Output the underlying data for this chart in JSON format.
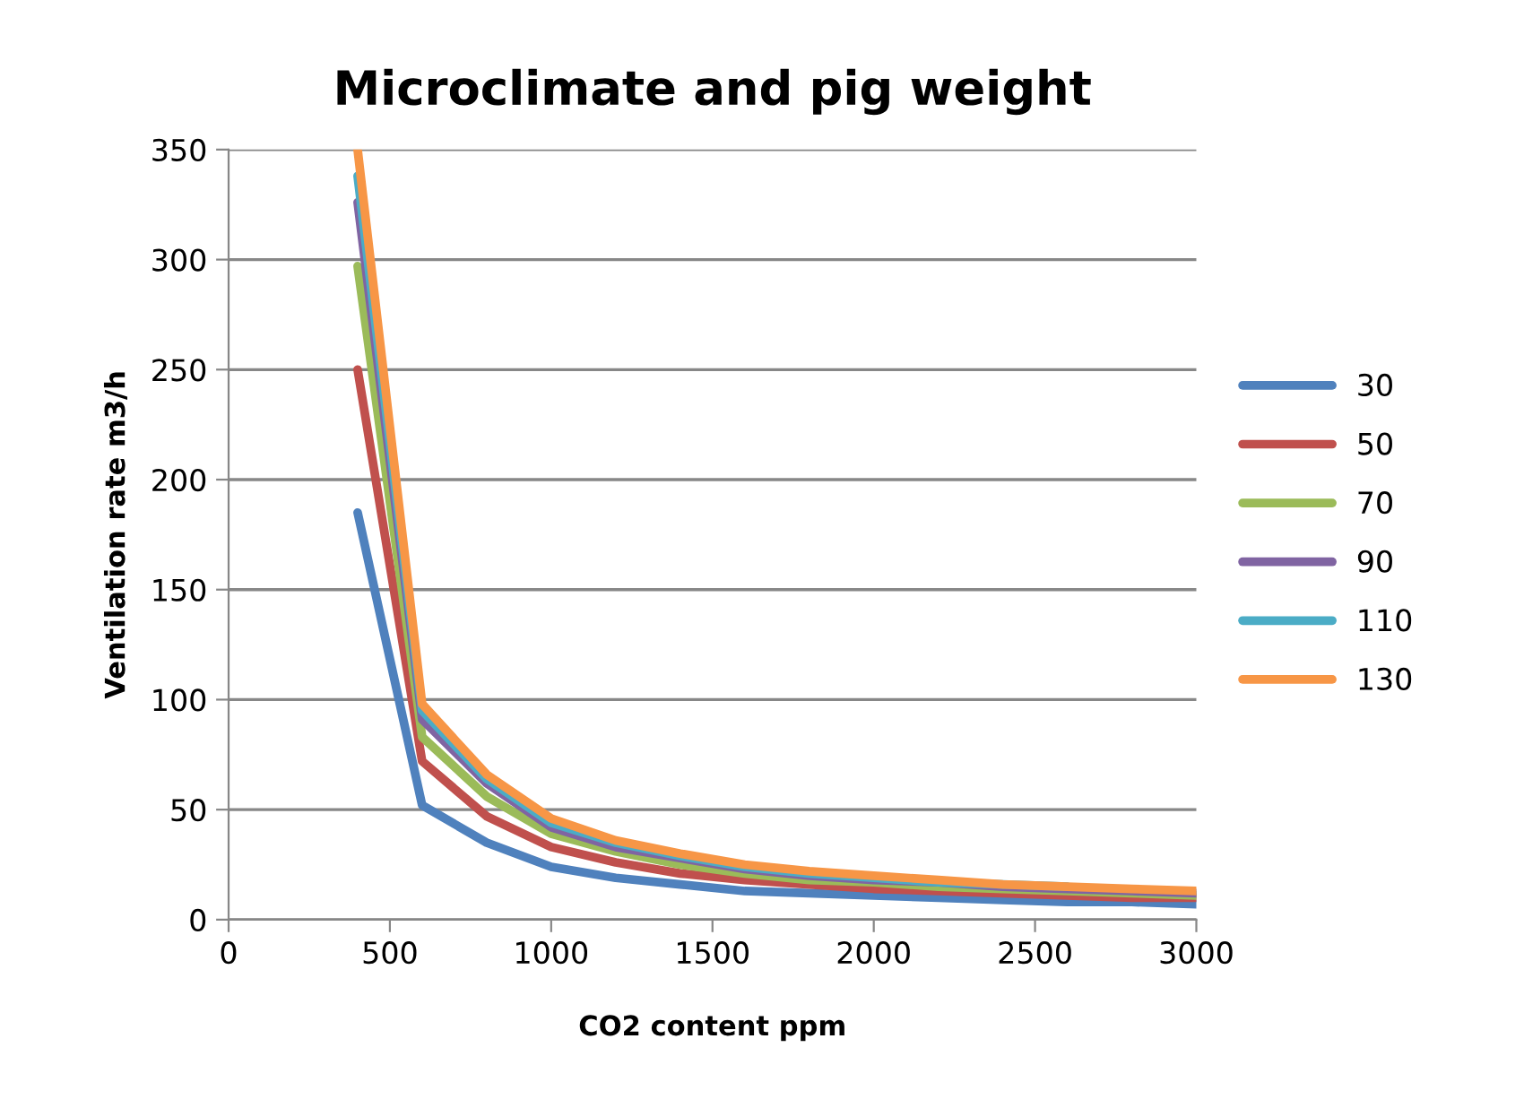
{
  "chart_data": {
    "type": "line",
    "title": "Microclimate and pig weight",
    "xlabel": "CO2 content ppm",
    "ylabel": "Ventilation rate m3/h",
    "x": [
      400,
      600,
      800,
      1000,
      1200,
      1400,
      1600,
      1800,
      2000,
      2200,
      2400,
      2600,
      2800,
      3000
    ],
    "series": [
      {
        "name": "30",
        "color": "#4f81bd",
        "values": [
          185,
          52,
          35,
          24,
          19,
          16,
          13,
          12,
          11,
          10,
          9,
          8,
          8,
          7
        ]
      },
      {
        "name": "50",
        "color": "#c0504d",
        "values": [
          250,
          72,
          47,
          33,
          26,
          21,
          18,
          16,
          14,
          13,
          12,
          11,
          10,
          10
        ]
      },
      {
        "name": "70",
        "color": "#9bbb59",
        "values": [
          297,
          83,
          56,
          39,
          31,
          25,
          21,
          18,
          17,
          15,
          14,
          13,
          12,
          11
        ]
      },
      {
        "name": "90",
        "color": "#8064a2",
        "values": [
          326,
          91,
          62,
          42,
          33,
          28,
          23,
          20,
          18,
          17,
          15,
          14,
          13,
          12
        ]
      },
      {
        "name": "110",
        "color": "#4bacc6",
        "values": [
          338,
          95,
          64,
          44,
          35,
          29,
          24,
          21,
          19,
          17,
          16,
          15,
          null,
          null
        ]
      },
      {
        "name": "130",
        "color": "#f79646",
        "values": [
          350,
          98,
          66,
          46,
          36,
          30,
          25,
          22,
          20,
          18,
          16,
          15,
          14,
          13
        ]
      }
    ],
    "xlim": [
      0,
      3000
    ],
    "xticks": [
      0,
      500,
      1000,
      1500,
      2000,
      2500,
      3000
    ],
    "ylim": [
      0,
      350
    ],
    "yticks": [
      0,
      50,
      100,
      150,
      200,
      250,
      300,
      350
    ],
    "grid": "y",
    "legend": "right",
    "marker": "none",
    "line_style": "solid"
  }
}
